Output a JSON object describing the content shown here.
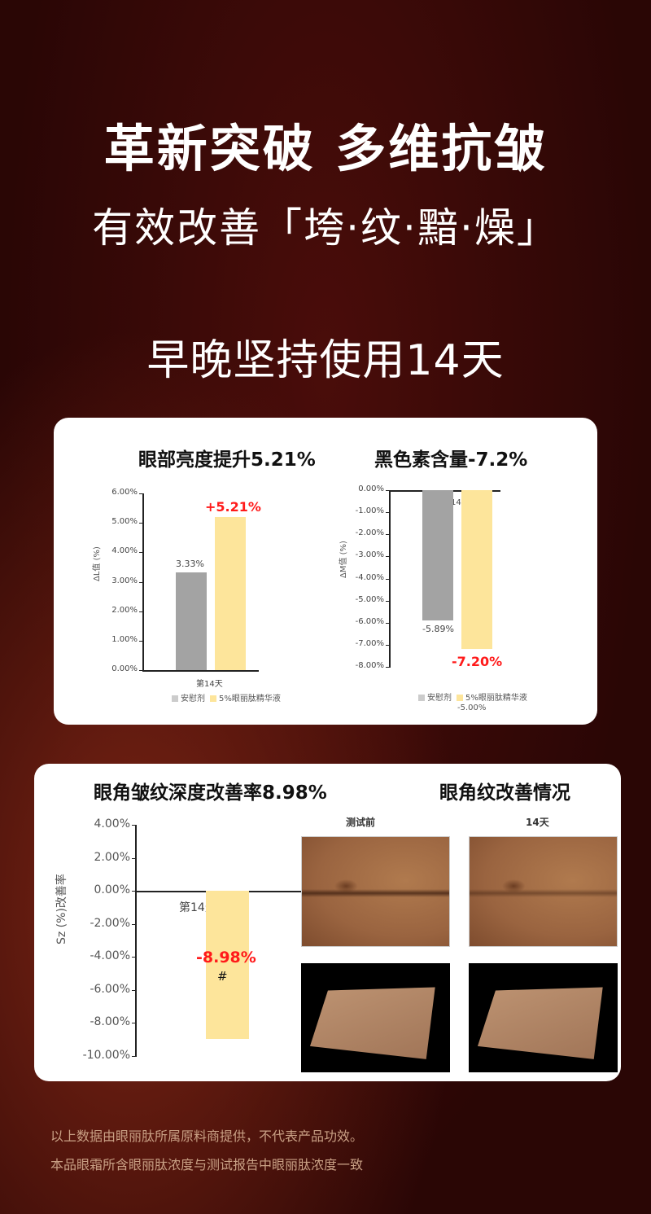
{
  "header": {
    "title": "革新突破  多维抗皱",
    "subtitle": "有效改善「垮·纹·黯·燥」",
    "usage": "早晚坚持使用14天"
  },
  "card1": {
    "heading_left": "眼部亮度提升5.21%",
    "heading_right": "黑色素含量-7.2%"
  },
  "card2": {
    "heading_left": "眼角皱纹深度改善率8.98%",
    "heading_right": "眼角纹改善情况",
    "photo_label_before": "测试前",
    "photo_label_after": "14天"
  },
  "colors": {
    "placebo": "#a3a3a3",
    "serum": "#fde59b",
    "highlight": "#ff1a1a",
    "background": "#3a0a08"
  },
  "chart_data": [
    {
      "type": "bar",
      "ylabel": "ΔL值 (%)",
      "ylim": [
        0,
        6
      ],
      "yticks": [
        "6.00%",
        "5.00%",
        "4.00%",
        "3.00%",
        "2.00%",
        "1.00%",
        "0.00%"
      ],
      "categories": [
        "第14天"
      ],
      "series": [
        {
          "name": "安慰剂",
          "values": [
            3.33
          ],
          "label": "3.33%"
        },
        {
          "name": "5%眼丽肽精华液",
          "values": [
            5.21
          ],
          "label": "+5.21%"
        }
      ]
    },
    {
      "type": "bar",
      "ylabel": "ΔM值 (%)",
      "ylim": [
        -8,
        0
      ],
      "yticks": [
        "0.00%",
        "-1.00%",
        "-2.00%",
        "-3.00%",
        "-4.00%",
        "-5.00%",
        "-6.00%",
        "-7.00%",
        "-8.00%"
      ],
      "categories": [
        "第14天"
      ],
      "series": [
        {
          "name": "安慰剂",
          "values": [
            -5.89
          ],
          "label": "-5.89%"
        },
        {
          "name": "5%眼丽肽精华液",
          "values": [
            -7.2
          ],
          "label": "-7.20%"
        }
      ],
      "cut_text": "-5.00%"
    },
    {
      "type": "bar",
      "ylabel": "Sz (%)改善率",
      "ylim": [
        -10,
        4
      ],
      "yticks": [
        "4.00%",
        "2.00%",
        "0.00%",
        "-2.00%",
        "-4.00%",
        "-6.00%",
        "-8.00%",
        "-10.00%"
      ],
      "categories": [
        "第14天"
      ],
      "series": [
        {
          "values": [
            -8.98
          ],
          "label": "-8.98%",
          "annotation": "#"
        }
      ]
    }
  ],
  "footer": {
    "line1": "以上数据由眼丽肽所属原料商提供，不代表产品功效。",
    "line2": "本品眼霜所含眼丽肽浓度与测试报告中眼丽肽浓度一致"
  }
}
